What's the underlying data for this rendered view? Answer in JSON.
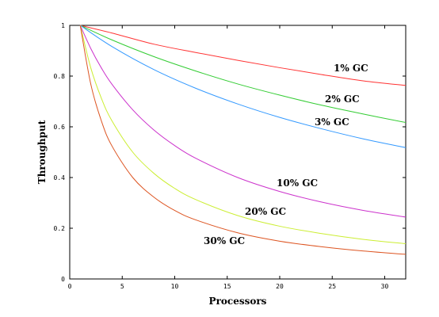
{
  "chart_data": {
    "type": "line",
    "xlabel": "Processors",
    "ylabel": "Throughput",
    "xlim": [
      0,
      32
    ],
    "ylim": [
      0,
      1
    ],
    "xticks": [
      0,
      5,
      10,
      15,
      20,
      25,
      30
    ],
    "yticks": [
      0,
      0.2,
      0.4,
      0.6,
      0.8,
      1
    ],
    "grid": false,
    "legend": "none",
    "series": [
      {
        "name": "1% GC",
        "color": "#ff3333",
        "x": [
          1,
          4,
          8,
          12,
          16,
          20,
          24,
          28,
          32
        ],
        "y": [
          1.0,
          0.97,
          0.926,
          0.893,
          0.862,
          0.833,
          0.806,
          0.781,
          0.763
        ]
      },
      {
        "name": "2% GC",
        "color": "#33cc33",
        "x": [
          1,
          4,
          8,
          12,
          16,
          20,
          24,
          28,
          32
        ],
        "y": [
          1.0,
          0.943,
          0.877,
          0.82,
          0.769,
          0.725,
          0.685,
          0.65,
          0.617
        ]
      },
      {
        "name": "3% GC",
        "color": "#3399ff",
        "x": [
          1,
          4,
          8,
          12,
          16,
          20,
          24,
          28,
          32
        ],
        "y": [
          1.0,
          0.917,
          0.826,
          0.752,
          0.69,
          0.637,
          0.592,
          0.552,
          0.518
        ]
      },
      {
        "name": "10% GC",
        "color": "#cc33cc",
        "x": [
          1,
          2,
          3,
          4,
          6,
          8,
          10,
          12,
          16,
          20,
          24,
          28,
          32
        ],
        "y": [
          1.0,
          0.909,
          0.833,
          0.769,
          0.667,
          0.588,
          0.526,
          0.476,
          0.4,
          0.345,
          0.303,
          0.27,
          0.244
        ]
      },
      {
        "name": "20% GC",
        "color": "#ccee33",
        "x": [
          1,
          2,
          3,
          4,
          6,
          8,
          10,
          12,
          16,
          20,
          24,
          28,
          32
        ],
        "y": [
          1.0,
          0.833,
          0.714,
          0.625,
          0.5,
          0.417,
          0.357,
          0.313,
          0.25,
          0.208,
          0.179,
          0.156,
          0.139
        ]
      },
      {
        "name": "30% GC",
        "color": "#dd5522",
        "x": [
          1,
          2,
          3,
          4,
          6,
          8,
          10,
          12,
          16,
          20,
          24,
          28,
          32
        ],
        "y": [
          1.0,
          0.769,
          0.625,
          0.526,
          0.4,
          0.323,
          0.27,
          0.233,
          0.182,
          0.149,
          0.127,
          0.11,
          0.097
        ]
      }
    ]
  }
}
